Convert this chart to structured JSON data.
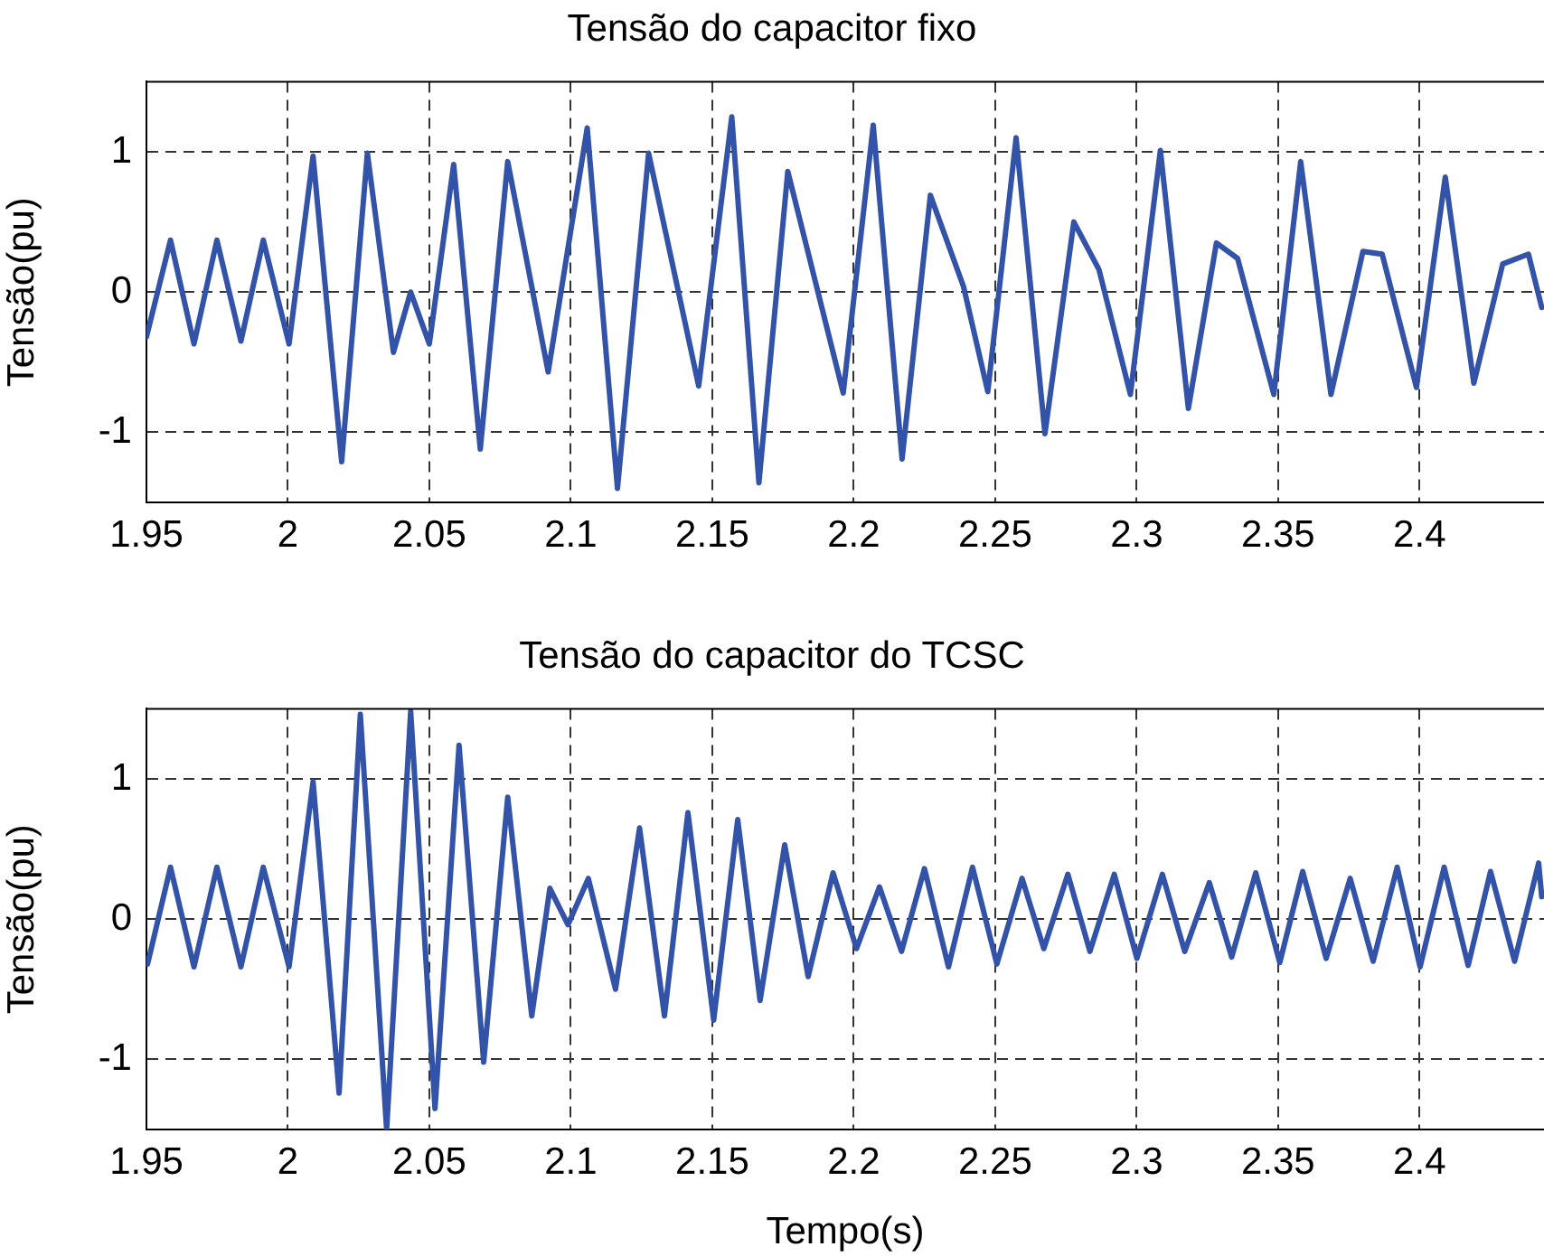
{
  "chart_data": [
    {
      "type": "line",
      "title": "Tensão do capacitor fixo",
      "ylabel": "Tensão(pu)",
      "xlim": [
        1.95,
        2.444
      ],
      "ylim": [
        -1.5,
        1.5
      ],
      "xticks": [
        1.95,
        2,
        2.05,
        2.1,
        2.15,
        2.2,
        2.25,
        2.3,
        2.35,
        2.4
      ],
      "yticks": [
        -1,
        0,
        1
      ],
      "grid": true,
      "legend": false,
      "marker": "none",
      "line_style": "solid",
      "x": [
        1.95,
        1.9585,
        1.9668,
        1.9749,
        1.9834,
        1.9913,
        2.0004,
        2.0089,
        2.019,
        2.0281,
        2.0373,
        2.0434,
        2.05,
        2.0586,
        2.068,
        2.0777,
        2.092,
        2.1058,
        2.1165,
        2.1275,
        2.1452,
        2.1569,
        2.1665,
        2.1767,
        2.1963,
        2.2069,
        2.2171,
        2.2271,
        2.2388,
        2.2474,
        2.2574,
        2.2676,
        2.2778,
        2.2867,
        2.2978,
        2.3084,
        2.3183,
        2.3282,
        2.3357,
        2.3485,
        2.358,
        2.3687,
        2.38,
        2.3868,
        2.3989,
        2.4091,
        2.4192,
        2.4294,
        2.4385,
        2.4432
      ],
      "series": [
        {
          "color": "#3353a8",
          "values": [
            -0.32,
            0.37,
            -0.37,
            0.37,
            -0.35,
            0.37,
            -0.37,
            0.97,
            -1.21,
            0.99,
            -0.43,
            0.0,
            -0.37,
            0.91,
            -1.12,
            0.93,
            -0.57,
            1.17,
            -1.4,
            0.99,
            -0.67,
            1.25,
            -1.36,
            0.86,
            -0.72,
            1.19,
            -1.19,
            0.69,
            0.04,
            -0.71,
            1.1,
            -1.01,
            0.5,
            0.16,
            -0.73,
            1.01,
            -0.83,
            0.35,
            0.24,
            -0.73,
            0.93,
            -0.73,
            0.29,
            0.27,
            -0.68,
            0.82,
            -0.65,
            0.2,
            0.27,
            -0.11
          ]
        }
      ]
    },
    {
      "type": "line",
      "title": "Tensão do capacitor do TCSC",
      "ylabel": "Tensão(pu)",
      "xlabel": "Tempo(s)",
      "xlim": [
        1.95,
        2.444
      ],
      "ylim": [
        -1.5,
        1.5
      ],
      "xticks": [
        1.95,
        2,
        2.05,
        2.1,
        2.15,
        2.2,
        2.25,
        2.3,
        2.35,
        2.4
      ],
      "yticks": [
        -1,
        0,
        1
      ],
      "grid": true,
      "legend": false,
      "marker": "none",
      "line_style": "solid",
      "x": [
        1.9504,
        1.9585,
        1.9668,
        1.9749,
        1.9834,
        1.9913,
        2.0004,
        2.0089,
        2.0181,
        2.0256,
        2.0349,
        2.0434,
        2.052,
        2.0605,
        2.0692,
        2.0777,
        2.0862,
        2.0926,
        2.099,
        2.1062,
        2.1158,
        2.1243,
        2.1331,
        2.1414,
        2.1505,
        2.159,
        2.1669,
        2.1756,
        2.1839,
        2.1927,
        2.201,
        2.2091,
        2.2169,
        2.225,
        2.2335,
        2.242,
        2.2506,
        2.2595,
        2.2672,
        2.2757,
        2.2835,
        2.2921,
        2.3001,
        2.3091,
        2.317,
        2.3257,
        2.3336,
        2.3421,
        2.3506,
        2.3587,
        2.367,
        2.3755,
        2.3836,
        2.3921,
        2.4002,
        2.4087,
        2.4172,
        2.4251,
        2.4336,
        2.4421,
        2.4432
      ],
      "series": [
        {
          "color": "#3353a8",
          "values": [
            -0.32,
            0.37,
            -0.34,
            0.37,
            -0.34,
            0.37,
            -0.34,
            0.98,
            -1.24,
            1.46,
            -1.5,
            1.48,
            -1.35,
            1.24,
            -1.02,
            0.87,
            -0.69,
            0.22,
            -0.04,
            0.29,
            -0.5,
            0.65,
            -0.69,
            0.76,
            -0.72,
            0.71,
            -0.58,
            0.53,
            -0.41,
            0.33,
            -0.21,
            0.23,
            -0.23,
            0.36,
            -0.34,
            0.37,
            -0.32,
            0.29,
            -0.21,
            0.32,
            -0.23,
            0.32,
            -0.28,
            0.32,
            -0.23,
            0.26,
            -0.27,
            0.33,
            -0.31,
            0.34,
            -0.28,
            0.29,
            -0.3,
            0.37,
            -0.34,
            0.37,
            -0.33,
            0.34,
            -0.3,
            0.4,
            0.16
          ]
        }
      ]
    }
  ]
}
